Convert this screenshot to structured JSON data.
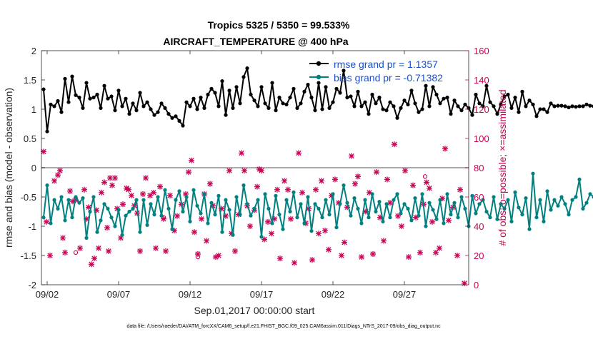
{
  "chart_data": {
    "type": "line",
    "title": "Tropics 5325 / 5350 = 99.533%",
    "subtitle": "AIRCRAFT_TEMPERATURE @ 400 hPa",
    "xlabel": "Sep.01,2017 00:00:00 start",
    "ylabel_left": "rmse and bias (model - observation)",
    "ylabel_right": "# of obs: o=possible; ×=assimilated",
    "footnote": "data file: /Users/raeder/DAI/ATM_forcXX/CAM6_setup/f.e21.FHIST_BGC.f09_025.CAM6assim.011/Diags_NTrS_2017-09/obs_diag_output.nc",
    "xlim": [
      1.6,
      31.5
    ],
    "ylim_left": [
      -2,
      2
    ],
    "ylim_right": [
      0,
      160
    ],
    "x_ticks": [
      2,
      7,
      12,
      17,
      22,
      27
    ],
    "x_tick_labels": [
      "09/02",
      "09/07",
      "09/12",
      "09/17",
      "09/22",
      "09/27"
    ],
    "left_ticks": [
      -2,
      -1.5,
      -1,
      -0.5,
      0,
      0.5,
      1,
      1.5,
      2
    ],
    "left_tick_labels": [
      "-2",
      "-1.5",
      "-1",
      "-0.5",
      "0",
      "0.5",
      "1",
      "1.5",
      "2"
    ],
    "right_ticks": [
      0,
      20,
      40,
      60,
      80,
      100,
      120,
      140,
      160
    ],
    "right_tick_labels": [
      "0",
      "20",
      "40",
      "60",
      "80",
      "100",
      "120",
      "140",
      "160"
    ],
    "zero_line": 0,
    "time_step_days": 0.25,
    "time_start": 1.75,
    "series": [
      {
        "name": "rmse grand pr = 1.1357",
        "color": "#000000",
        "axis": "left",
        "values": [
          1.34,
          0.62,
          1.08,
          1.05,
          1.14,
          0.95,
          1.52,
          1.12,
          1.56,
          1.24,
          1.2,
          1.02,
          1.45,
          1.18,
          1.2,
          1.25,
          1.02,
          1.4,
          1.18,
          1.22,
          0.98,
          1.32,
          1.05,
          1.18,
          0.92,
          1.1,
          0.98,
          1.28,
          1.05,
          1.12,
          1.0,
          0.9,
          0.95,
          1.1,
          1.02,
          0.92,
          0.85,
          0.88,
          0.8,
          0.72,
          1.12,
          1.05,
          1.18,
          1.0,
          1.2,
          1.02,
          1.25,
          1.35,
          1.28,
          1.05,
          1.48,
          0.9,
          1.32,
          1.02,
          1.38,
          1.1,
          1.55,
          1.7,
          1.25,
          1.15,
          1.05,
          1.38,
          1.1,
          1.02,
          1.45,
          0.98,
          1.2,
          1.1,
          1.08,
          1.2,
          1.35,
          1.02,
          1.1,
          1.3,
          1.42,
          1.2,
          0.98,
          1.45,
          1.0,
          1.38,
          1.02,
          1.12,
          1.35,
          1.28,
          1.66,
          1.2,
          1.22,
          1.05,
          1.3,
          1.05,
          1.12,
          0.92,
          1.25,
          1.1,
          1.2,
          1.0,
          0.98,
          1.12,
          1.05,
          0.85,
          1.02,
          1.15,
          1.08,
          1.32,
          1.1,
          0.95,
          1.0,
          1.4,
          1.05,
          1.38,
          1.25,
          1.1,
          1.18,
          1.2,
          0.92,
          1.15,
          1.05,
          0.98,
          1.08,
          1.02,
          0.9,
          1.25,
          1.1,
          1.05,
          1.4,
          1.12,
          1.05,
          0.92,
          1.08,
          1.22,
          1.25,
          1.02,
          1.2,
          0.95,
          1.3,
          1.05,
          1.15,
          1.08,
          0.88,
          1.0,
          1.0,
          0.95,
          1.1,
          1.05,
          1.06,
          1.06,
          1.05,
          1.03,
          1.05,
          1.04,
          1.05,
          1.05,
          1.08,
          1.06,
          1.05,
          1.1,
          1.06,
          1.06
        ]
      },
      {
        "name": "bias grand pr = -0.71382",
        "color": "#008080",
        "axis": "left",
        "values": [
          -0.85,
          -0.3,
          -0.95,
          -0.55,
          -0.7,
          -0.5,
          -0.9,
          -0.55,
          -0.85,
          -0.5,
          -0.6,
          -0.52,
          -1.2,
          -0.75,
          -0.5,
          -1.1,
          -0.9,
          -0.62,
          -0.7,
          -0.85,
          -1.0,
          -0.72,
          -1.15,
          -0.82,
          -0.75,
          -0.7,
          -0.55,
          -1.1,
          -0.55,
          -0.98,
          -0.62,
          -0.8,
          -0.5,
          -0.82,
          -0.38,
          -0.7,
          -1.05,
          -0.55,
          -0.4,
          -0.75,
          -0.5,
          -0.92,
          -0.38,
          -0.65,
          -0.78,
          -0.45,
          -0.95,
          -0.6,
          -0.8,
          -0.48,
          -1.1,
          -0.55,
          -0.72,
          -1.15,
          -0.5,
          -0.8,
          -0.3,
          -0.62,
          -0.82,
          -0.7,
          -0.55,
          -1.18,
          -0.45,
          -0.7,
          -0.95,
          -0.48,
          -0.8,
          -1.05,
          -0.55,
          -0.75,
          -0.42,
          -0.85,
          -0.62,
          -0.95,
          -0.5,
          -1.08,
          -0.62,
          -0.7,
          -0.85,
          -0.55,
          -0.8,
          -0.45,
          -1.02,
          -0.62,
          -0.3,
          -0.6,
          -0.82,
          -0.52,
          -0.7,
          -0.95,
          -0.55,
          -0.85,
          -0.45,
          -0.75,
          -0.58,
          -0.92,
          -0.62,
          -0.85,
          -0.55,
          -0.45,
          -0.78,
          -0.62,
          -0.7,
          -0.9,
          -0.52,
          -0.82,
          -0.45,
          -1.0,
          -0.6,
          -0.72,
          -0.88,
          -0.55,
          -0.95,
          -0.45,
          -0.8,
          -0.6,
          -0.85,
          -0.5,
          -0.7,
          -1.0,
          -0.48,
          -0.78,
          -0.62,
          -0.55,
          -0.75,
          -0.85,
          -0.5,
          -0.88,
          -0.62,
          -0.7,
          -0.55,
          -0.92,
          -0.42,
          -0.68,
          -0.8,
          -0.52,
          -1.05,
          -0.1,
          -0.85,
          -0.55,
          -0.92,
          -0.4,
          -0.72,
          -0.55,
          -0.65,
          -0.5,
          -0.62,
          -0.8,
          -0.55,
          -0.5,
          -0.2,
          -0.7,
          -0.6,
          -0.45,
          -0.5,
          -0.6,
          -0.55,
          -0.52
        ]
      }
    ],
    "obs_assimilated": {
      "marker": "×",
      "color": "#cc0055",
      "axis": "right",
      "points": [
        [
          1.75,
          91
        ],
        [
          1.95,
          43
        ],
        [
          2.2,
          20
        ],
        [
          2.5,
          71
        ],
        [
          2.75,
          75
        ],
        [
          2.9,
          78
        ],
        [
          3.1,
          32
        ],
        [
          3.25,
          22
        ],
        [
          3.6,
          64
        ],
        [
          3.8,
          57
        ],
        [
          4.0,
          58
        ],
        [
          4.3,
          25
        ],
        [
          4.6,
          65
        ],
        [
          4.75,
          45
        ],
        [
          4.9,
          53
        ],
        [
          5.1,
          14
        ],
        [
          5.3,
          18
        ],
        [
          5.45,
          51
        ],
        [
          5.6,
          25
        ],
        [
          5.8,
          63
        ],
        [
          6.0,
          70
        ],
        [
          6.2,
          39
        ],
        [
          6.3,
          23
        ],
        [
          6.4,
          73
        ],
        [
          6.55,
          68
        ],
        [
          6.75,
          73
        ],
        [
          6.9,
          52
        ],
        [
          7.15,
          32
        ],
        [
          7.3,
          55
        ],
        [
          7.55,
          66
        ],
        [
          7.7,
          65
        ],
        [
          7.9,
          61
        ],
        [
          8.1,
          54
        ],
        [
          8.3,
          49
        ],
        [
          8.5,
          23
        ],
        [
          8.7,
          62
        ],
        [
          8.9,
          73
        ],
        [
          9.2,
          61
        ],
        [
          9.45,
          63
        ],
        [
          9.6,
          25
        ],
        [
          9.9,
          67
        ],
        [
          10.15,
          45
        ],
        [
          10.3,
          23
        ],
        [
          10.6,
          61
        ],
        [
          10.9,
          37
        ],
        [
          11.1,
          47
        ],
        [
          11.4,
          55
        ],
        [
          11.7,
          62
        ],
        [
          11.9,
          77
        ],
        [
          12.1,
          85
        ],
        [
          12.3,
          36
        ],
        [
          12.55,
          21
        ],
        [
          12.8,
          45
        ],
        [
          13.0,
          62
        ],
        [
          13.15,
          30
        ],
        [
          13.4,
          69
        ],
        [
          13.6,
          54
        ],
        [
          13.8,
          19
        ],
        [
          14.0,
          20
        ],
        [
          14.2,
          52
        ],
        [
          14.5,
          47
        ],
        [
          14.75,
          78
        ],
        [
          14.9,
          35
        ],
        [
          15.15,
          23
        ],
        [
          15.4,
          48
        ],
        [
          15.6,
          90
        ],
        [
          15.8,
          78
        ],
        [
          16.0,
          54
        ],
        [
          16.2,
          40
        ],
        [
          16.5,
          51
        ],
        [
          16.7,
          67
        ],
        [
          16.85,
          79
        ],
        [
          17.0,
          78
        ],
        [
          17.2,
          31
        ],
        [
          17.45,
          43
        ],
        [
          17.7,
          35
        ],
        [
          17.9,
          45
        ],
        [
          18.1,
          65
        ],
        [
          18.3,
          18
        ],
        [
          18.6,
          71
        ],
        [
          18.85,
          65
        ],
        [
          19.05,
          45
        ],
        [
          19.3,
          15
        ],
        [
          19.6,
          90
        ],
        [
          19.85,
          63
        ],
        [
          20.1,
          42
        ],
        [
          20.3,
          52
        ],
        [
          20.55,
          17
        ],
        [
          20.8,
          65
        ],
        [
          21.0,
          35
        ],
        [
          21.2,
          71
        ],
        [
          21.45,
          37
        ],
        [
          21.7,
          24
        ],
        [
          21.9,
          61
        ],
        [
          22.15,
          72
        ],
        [
          22.4,
          56
        ],
        [
          22.6,
          20
        ],
        [
          22.8,
          29
        ],
        [
          23.0,
          53
        ],
        [
          23.3,
          88
        ],
        [
          23.55,
          69
        ],
        [
          23.75,
          74
        ],
        [
          24.0,
          19
        ],
        [
          24.3,
          50
        ],
        [
          24.55,
          63
        ],
        [
          24.8,
          21
        ],
        [
          25.05,
          77
        ],
        [
          25.3,
          46
        ],
        [
          25.55,
          30
        ],
        [
          25.8,
          72
        ],
        [
          26.0,
          56
        ],
        [
          26.3,
          96
        ],
        [
          26.55,
          47
        ],
        [
          26.8,
          40
        ],
        [
          27.05,
          78
        ],
        [
          27.3,
          19
        ],
        [
          27.6,
          68
        ],
        [
          27.8,
          46
        ],
        [
          28.1,
          22
        ],
        [
          28.35,
          55
        ],
        [
          28.55,
          70
        ],
        [
          28.75,
          66
        ],
        [
          28.95,
          43
        ],
        [
          29.2,
          22
        ],
        [
          29.45,
          25
        ],
        [
          29.65,
          59
        ],
        [
          29.85,
          93
        ],
        [
          30.1,
          44
        ],
        [
          30.4,
          53
        ],
        [
          30.7,
          20
        ],
        [
          30.9,
          65
        ],
        [
          31.2,
          1
        ]
      ]
    },
    "obs_possible": {
      "marker": "o",
      "color": "#cc0055",
      "axis": "right",
      "points": [
        [
          4.0,
          22
        ],
        [
          10.15,
          46
        ],
        [
          12.55,
          19
        ],
        [
          28.45,
          74
        ]
      ]
    }
  }
}
